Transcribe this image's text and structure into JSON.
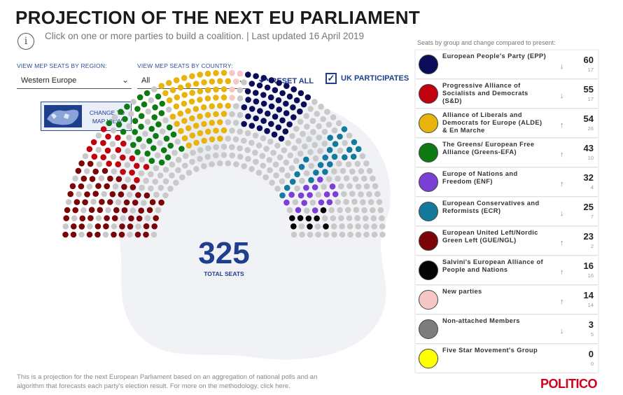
{
  "header": {
    "title": "PROJECTION OF THE NEXT EU PARLIAMENT",
    "subtitle": "Click on one or more parties to build a coalition. | Last updated 16 April 2019",
    "info_icon": "info-icon"
  },
  "filters": {
    "region_label": "VIEW MEP SEATS BY REGION:",
    "region_value": "Western Europe",
    "country_label": "VIEW MEP SEATS BY COUNTRY:",
    "country_value": "All",
    "reset_label": "RESET ALL",
    "reset_icon": "undo-arrow-icon",
    "uk_label": "UK PARTICIPATES",
    "uk_checked": true
  },
  "map_button": {
    "label_line1": "CHANGE TO",
    "label_line2": "MAP VIEW"
  },
  "total": {
    "value": "325",
    "caption": "TOTAL SEATS"
  },
  "panel": {
    "heading": "Seats by group and change compared to present:",
    "groups": [
      {
        "name": "European People's Party (EPP)",
        "seats": "60",
        "change": "17",
        "direction": "down",
        "color": "#0b0c5a"
      },
      {
        "name": "Progressive Alliance of Socialists and Democrats (S&D)",
        "seats": "55",
        "change": "17",
        "direction": "down",
        "color": "#c0020f"
      },
      {
        "name": "Alliance of Liberals and Democrats for Europe (ALDE) & En Marche",
        "seats": "54",
        "change": "26",
        "direction": "up",
        "color": "#e8b40c"
      },
      {
        "name": "The Greens/ European Free Alliance (Greens-EFA)",
        "seats": "43",
        "change": "10",
        "direction": "up",
        "color": "#0d7a12"
      },
      {
        "name": "Europe of Nations and Freedom (ENF)",
        "seats": "32",
        "change": "4",
        "direction": "up",
        "color": "#7b3fd6"
      },
      {
        "name": "European Conservatives and Reformists (ECR)",
        "seats": "25",
        "change": "7",
        "direction": "down",
        "color": "#147a9c"
      },
      {
        "name": "European United Left/Nordic Green Left (GUE/NGL)",
        "seats": "23",
        "change": "2",
        "direction": "up",
        "color": "#7a0407"
      },
      {
        "name": "Salvini's European Alliance of People and Nations",
        "seats": "16",
        "change": "16",
        "direction": "up",
        "color": "#050505"
      },
      {
        "name": "New parties",
        "seats": "14",
        "change": "14",
        "direction": "up",
        "color": "#f7c7c8"
      },
      {
        "name": "Non-attached Members",
        "seats": "3",
        "change": "5",
        "direction": "down",
        "color": "#7d7d7d"
      },
      {
        "name": "Five Star Movement's Group",
        "seats": "0",
        "change": "0",
        "direction": "none",
        "color": "#ffff00"
      }
    ]
  },
  "footnote": {
    "text": "This is a projection for the next European Parliament based on an aggregation of national polls and an algorithm that forecasts each party's election result. For more on the methodology, click here."
  },
  "brand": {
    "name": "POLITICO",
    "color": "#d0021b"
  }
}
